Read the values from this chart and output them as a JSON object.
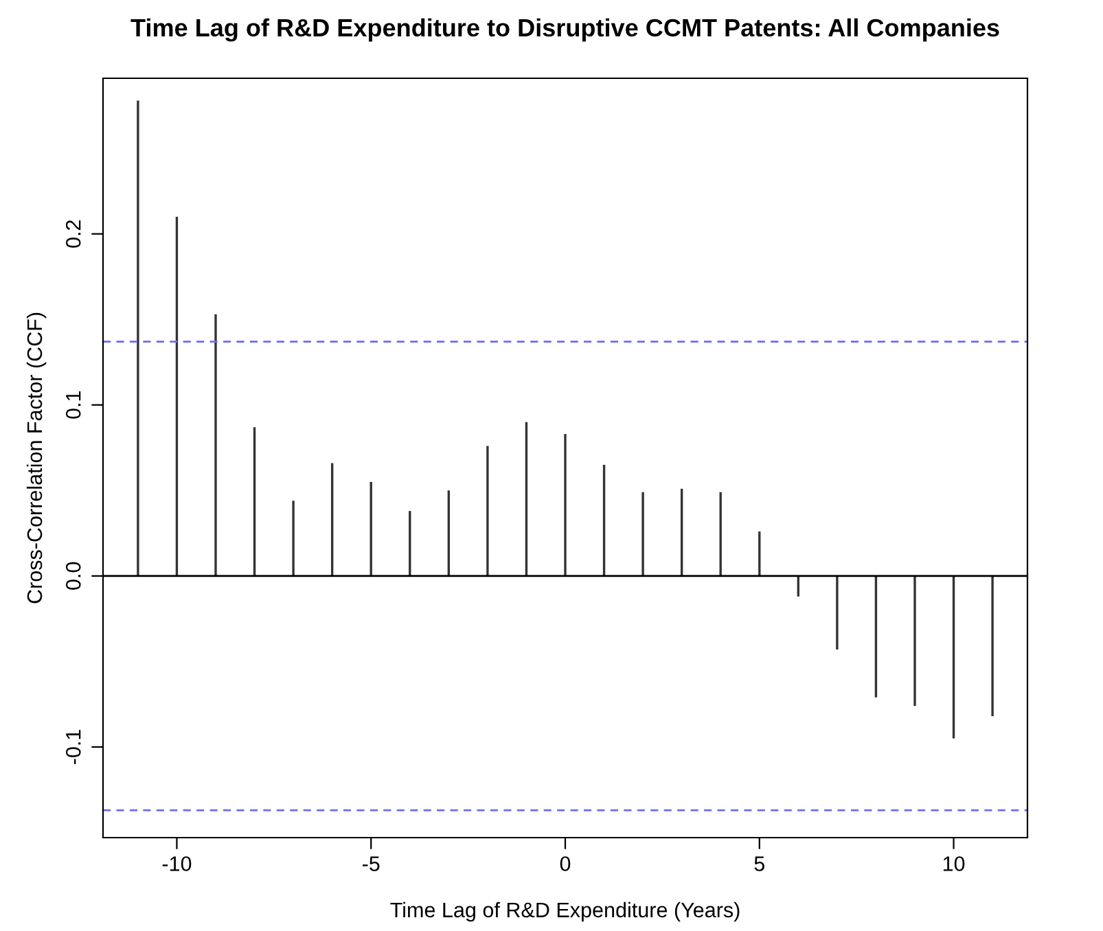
{
  "chart_data": {
    "type": "bar",
    "title": "Time Lag of R&D Expenditure to Disruptive CCMT Patents: All Companies",
    "xlabel": "Time Lag of R&D Expenditure (Years)",
    "ylabel": "Cross-Correlation Factor (CCF)",
    "x": [
      -11,
      -10,
      -9,
      -8,
      -7,
      -6,
      -5,
      -4,
      -3,
      -2,
      -1,
      0,
      1,
      2,
      3,
      4,
      5,
      6,
      7,
      8,
      9,
      10,
      11
    ],
    "values": [
      0.278,
      0.21,
      0.153,
      0.087,
      0.044,
      0.066,
      0.055,
      0.038,
      0.05,
      0.076,
      0.09,
      0.083,
      0.065,
      0.049,
      0.051,
      0.049,
      0.026,
      -0.012,
      -0.043,
      -0.071,
      -0.076,
      -0.095,
      -0.082
    ],
    "color": "#333333",
    "xlim": [
      -11.9,
      11.9
    ],
    "xticks": [
      -10,
      -5,
      0,
      5,
      10
    ],
    "ylim": [
      -0.153,
      0.291
    ],
    "yticks": [
      -0.1,
      {
        "value": 0,
        "label": "0.0"
      },
      0.1,
      0.2
    ],
    "ref_lines": [
      {
        "axis": "y",
        "value": 0,
        "color": "#000000",
        "line_style": "solid"
      },
      {
        "axis": "y",
        "value": 0.137,
        "color": "#6b6bf5",
        "line_style": "dashed"
      },
      {
        "axis": "y",
        "value": -0.137,
        "color": "#6b6bf5",
        "line_style": "dashed"
      }
    ],
    "grid": false
  }
}
